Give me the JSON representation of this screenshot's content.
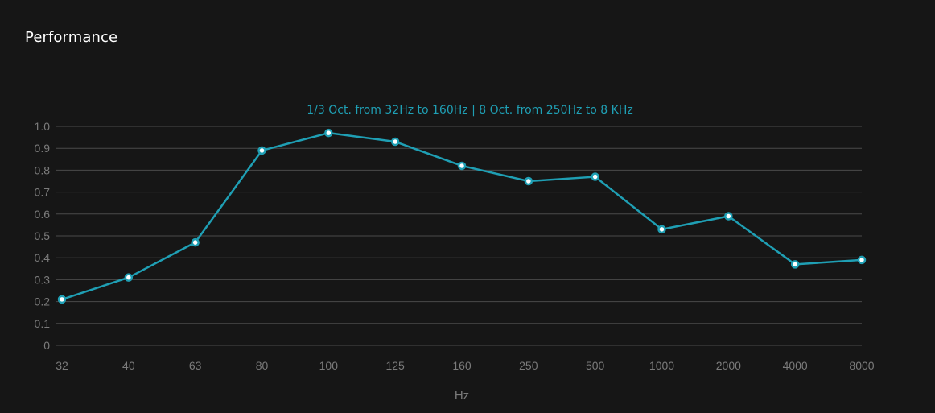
{
  "card": {
    "title": "Performance"
  },
  "chart_data": {
    "type": "line",
    "title": "1/3 Oct. from 32Hz to 160Hz | 8 Oct. from 250Hz to 8 KHz",
    "xlabel": "Hz",
    "ylabel": "",
    "categories": [
      "32",
      "40",
      "63",
      "80",
      "100",
      "125",
      "160",
      "250",
      "500",
      "1000",
      "2000",
      "4000",
      "8000"
    ],
    "values": [
      0.21,
      0.31,
      0.47,
      0.89,
      0.97,
      0.93,
      0.82,
      0.75,
      0.77,
      0.53,
      0.59,
      0.37,
      0.39
    ],
    "yticks": [
      "0",
      "0.1",
      "0.2",
      "0.3",
      "0.4",
      "0.5",
      "0.6",
      "0.7",
      "0.8",
      "0.9",
      "1.0"
    ],
    "ylim": [
      0,
      1
    ],
    "grid": true,
    "legend": "none",
    "colors": {
      "line": "#1f9fb4",
      "marker_fill": "#ffffff",
      "grid": "#4a4a4a",
      "tick_text": "#7b7b7b",
      "subtitle": "#1f9fb4"
    }
  }
}
